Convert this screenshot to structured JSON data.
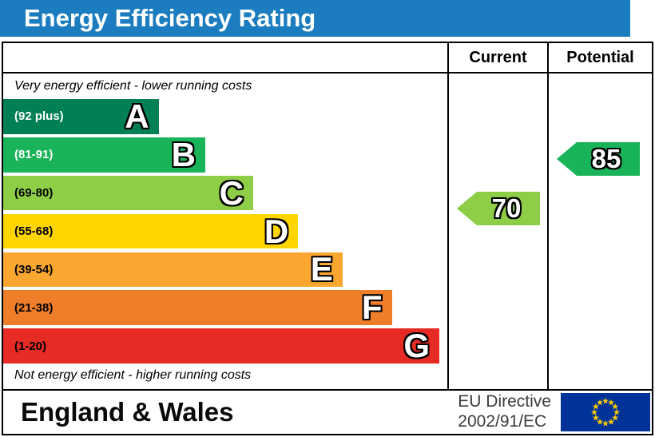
{
  "title": "Energy Efficiency Rating",
  "header": {
    "current": "Current",
    "potential": "Potential"
  },
  "notes": {
    "top": "Very energy efficient - lower running costs",
    "bottom": "Not energy efficient - higher running costs"
  },
  "footer": {
    "region": "England & Wales",
    "directive": [
      "EU Directive",
      "2002/91/EC"
    ],
    "flag_icon": "eu-flag-icon"
  },
  "colors": {
    "title_bar": "#1b7cc0",
    "flag_blue": "#003399",
    "flag_star": "#ffcc00"
  },
  "chart_data": {
    "type": "bar",
    "title": "Energy Efficiency Rating",
    "xlabel": "",
    "ylabel": "",
    "legend_position": "none",
    "grid": false,
    "bands": [
      {
        "letter": "A",
        "label": "(92 plus)",
        "min": 92,
        "max": 100,
        "color": "#008054",
        "text_color": "#ffffff",
        "width_pct": 35.0
      },
      {
        "letter": "B",
        "label": "(81-91)",
        "min": 81,
        "max": 91,
        "color": "#19b459",
        "text_color": "#ffffff",
        "width_pct": 45.5
      },
      {
        "letter": "C",
        "label": "(69-80)",
        "min": 69,
        "max": 80,
        "color": "#8dce46",
        "text_color": "#000000",
        "width_pct": 56.3
      },
      {
        "letter": "D",
        "label": "(55-68)",
        "min": 55,
        "max": 68,
        "color": "#ffd500",
        "text_color": "#000000",
        "width_pct": 66.4
      },
      {
        "letter": "E",
        "label": "(39-54)",
        "min": 39,
        "max": 54,
        "color": "#faa732",
        "text_color": "#000000",
        "width_pct": 76.4
      },
      {
        "letter": "F",
        "label": "(21-38)",
        "min": 21,
        "max": 38,
        "color": "#ee7e29",
        "text_color": "#000000",
        "width_pct": 87.5
      },
      {
        "letter": "G",
        "label": "(1-20)",
        "min": 1,
        "max": 20,
        "color": "#e62a24",
        "text_color": "#000000",
        "width_pct": 98.2
      }
    ],
    "current": {
      "value": 70,
      "band": "C",
      "color": "#8dce46"
    },
    "potential": {
      "value": 85,
      "band": "B",
      "color": "#19b459"
    }
  }
}
